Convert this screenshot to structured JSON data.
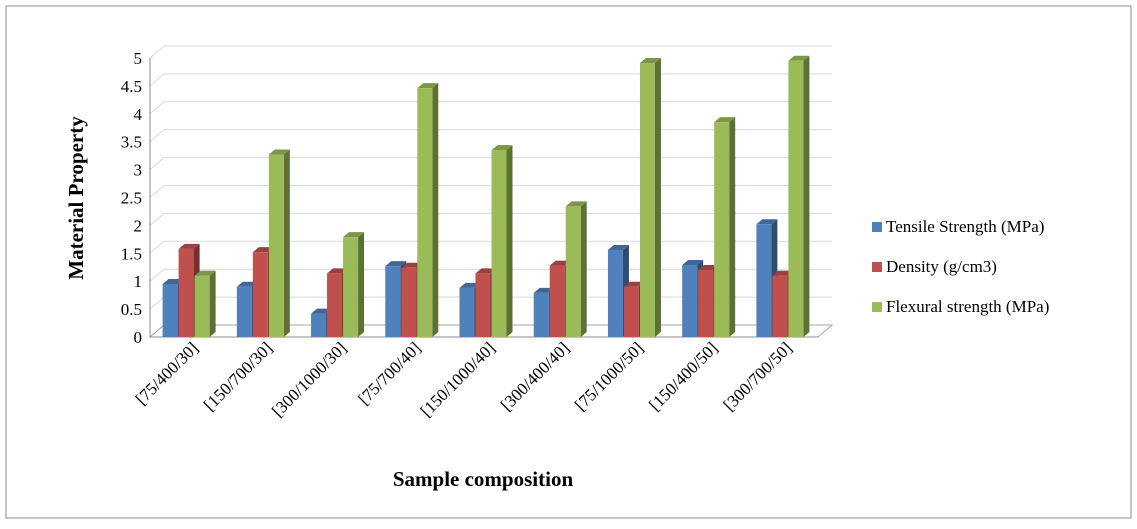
{
  "chart_data": {
    "type": "bar",
    "title": "",
    "xlabel": "Sample composition",
    "ylabel": "Material Property",
    "ylim": [
      0,
      5
    ],
    "yticks": [
      "0",
      "0.5",
      "1",
      "1.5",
      "2",
      "2.5",
      "3",
      "3.5",
      "4",
      "4.5",
      "5"
    ],
    "grid": true,
    "legend_position": "right",
    "categories": [
      "[75/400/30]",
      "[150/700/30]",
      "[300/1000/30]",
      "[75/700/40]",
      "[150/1000/40]",
      "[300/400/40]",
      "[75/1000/50]",
      "[150/400/50]",
      "[300/700/50]"
    ],
    "series": [
      {
        "name": "Tensile Strength (MPa)",
        "color": "#4f81bd",
        "values": [
          0.95,
          0.9,
          0.42,
          1.27,
          0.88,
          0.79,
          1.56,
          1.29,
          2.02
        ]
      },
      {
        "name": "Density (g/cm3)",
        "color": "#c0504d",
        "values": [
          1.58,
          1.52,
          1.14,
          1.24,
          1.14,
          1.28,
          0.9,
          1.2,
          1.1
        ]
      },
      {
        "name": "Flexural strength (MPa)",
        "color": "#9bbb59",
        "values": [
          1.1,
          3.27,
          1.79,
          4.46,
          3.35,
          2.34,
          4.91,
          3.85,
          4.95
        ]
      }
    ]
  }
}
